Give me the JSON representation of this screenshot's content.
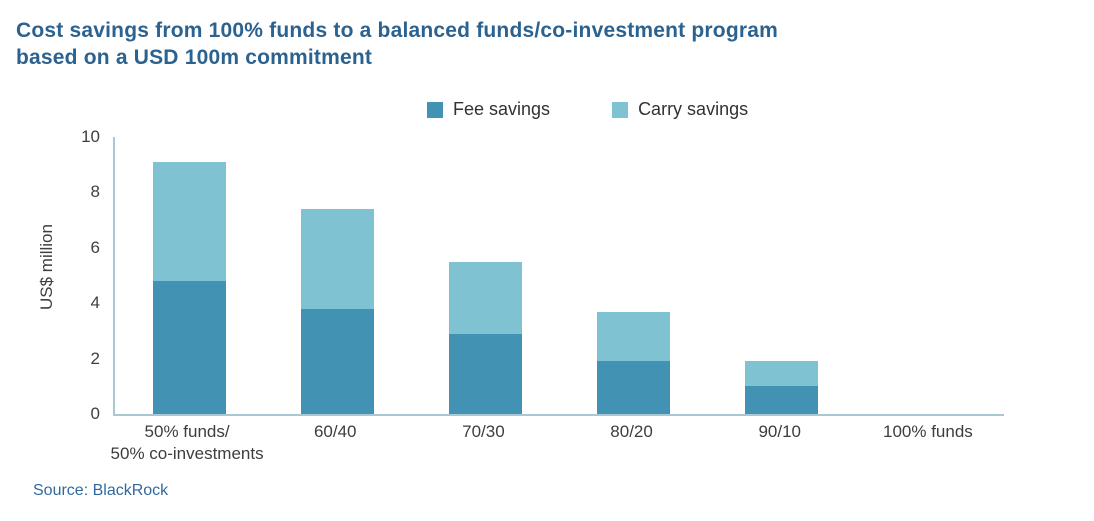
{
  "header": {
    "title_line1": "Cost savings from 100% funds to a balanced funds/co-investment program",
    "title_line2": "based on a USD 100m commitment"
  },
  "chart_data": {
    "type": "bar",
    "stacked": true,
    "title": "Cost savings from 100% funds to a balanced funds/co-investment program based on a USD 100m commitment",
    "categories": [
      "50% funds/\n50% co-investments",
      "60/40",
      "70/30",
      "80/20",
      "90/10",
      "100% funds"
    ],
    "series": [
      {
        "name": "Fee savings",
        "color": "#4292b4",
        "values": [
          4.8,
          3.8,
          2.9,
          1.9,
          1.0,
          0
        ]
      },
      {
        "name": "Carry savings",
        "color": "#7fc2d1",
        "values": [
          4.3,
          3.6,
          2.6,
          1.8,
          0.9,
          0
        ]
      }
    ],
    "totals": [
      9.1,
      7.4,
      5.5,
      3.7,
      1.9,
      0
    ],
    "xlabel": "",
    "ylabel": "US$ million",
    "ylim": [
      0,
      10
    ],
    "yticks": [
      0,
      2,
      4,
      6,
      8,
      10
    ],
    "legend_position": "top",
    "grid": false
  },
  "source": {
    "text": "Source: BlackRock"
  },
  "colors": {
    "title": "#2c628f",
    "source": "#31699e",
    "axis_line": "#aac7d6",
    "axis_text": "#404040"
  }
}
